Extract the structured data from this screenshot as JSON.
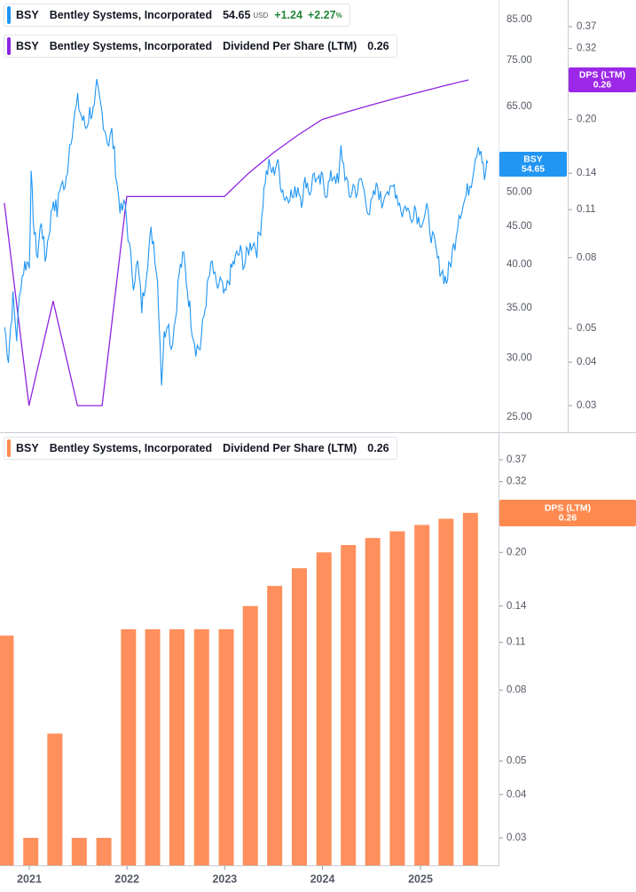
{
  "legends": {
    "price": {
      "ticker": "BSY",
      "company": "Bentley Systems, Incorporated",
      "price": "54.65",
      "currency": "USD",
      "change": "+1.24",
      "change_pct": "+2.27",
      "pct_symbol": "%",
      "color": "#2196f3"
    },
    "dps_line": {
      "ticker": "BSY",
      "company": "Bentley Systems, Incorporated",
      "metric": "Dividend Per Share (LTM)",
      "value": "0.26",
      "color": "#8e24e0"
    },
    "dps_bars": {
      "ticker": "BSY",
      "company": "Bentley Systems, Incorporated",
      "metric": "Dividend Per Share (LTM)",
      "value": "0.26",
      "color": "#ff8a50"
    }
  },
  "tags": {
    "price": {
      "label": "BSY",
      "value": "54.65",
      "color": "#2196f3"
    },
    "dps_top": {
      "label": "DPS (LTM)",
      "value": "0.26",
      "color": "#9c27e8"
    },
    "dps_bottom": {
      "label": "DPS (LTM)",
      "value": "0.26",
      "color": "#ff8a50"
    }
  },
  "chart_data": [
    {
      "type": "line",
      "scale": "log",
      "title": "",
      "xlabel": "",
      "ylabel": "",
      "x_tick_labels": [
        "2021",
        "2022",
        "2023",
        "2024",
        "2025"
      ],
      "y_tick_labels": [
        "85.00",
        "75.00",
        "65.00",
        "50.00",
        "45.00",
        "40.00",
        "35.00",
        "30.00",
        "25.00"
      ],
      "ylim": [
        24,
        95
      ],
      "series": [
        {
          "name": "BSY",
          "color": "#2196f3",
          "points": [
            [
              "2020-10-01",
              33.0
            ],
            [
              "2020-10-15",
              30.0
            ],
            [
              "2020-11-01",
              36.0
            ],
            [
              "2020-11-15",
              32.0
            ],
            [
              "2020-12-01",
              38.0
            ],
            [
              "2020-12-15",
              40.0
            ],
            [
              "2021-01-01",
              40.3
            ],
            [
              "2021-01-08",
              52.0
            ],
            [
              "2021-01-20",
              44.0
            ],
            [
              "2021-02-01",
              41.0
            ],
            [
              "2021-02-15",
              46.0
            ],
            [
              "2021-03-01",
              40.5
            ],
            [
              "2021-03-15",
              44.0
            ],
            [
              "2021-04-01",
              49.0
            ],
            [
              "2021-04-15",
              47.0
            ],
            [
              "2021-05-01",
              52.0
            ],
            [
              "2021-05-15",
              50.0
            ],
            [
              "2021-06-01",
              58.0
            ],
            [
              "2021-06-15",
              62.0
            ],
            [
              "2021-07-01",
              66.0
            ],
            [
              "2021-07-15",
              63.0
            ],
            [
              "2021-08-01",
              61.0
            ],
            [
              "2021-08-15",
              64.0
            ],
            [
              "2021-09-01",
              64.0
            ],
            [
              "2021-09-10",
              69.0
            ],
            [
              "2021-09-25",
              65.0
            ],
            [
              "2021-10-10",
              61.0
            ],
            [
              "2021-10-25",
              58.0
            ],
            [
              "2021-11-05",
              60.0
            ],
            [
              "2021-11-15",
              56.0
            ],
            [
              "2021-11-28",
              50.0
            ],
            [
              "2021-12-10",
              47.0
            ],
            [
              "2021-12-25",
              48.0
            ],
            [
              "2022-01-10",
              42.0
            ],
            [
              "2022-01-25",
              38.0
            ],
            [
              "2022-02-10",
              40.0
            ],
            [
              "2022-02-25",
              35.0
            ],
            [
              "2022-03-10",
              38.0
            ],
            [
              "2022-03-20",
              41.0
            ],
            [
              "2022-04-01",
              44.0
            ],
            [
              "2022-04-10",
              43.0
            ],
            [
              "2022-04-25",
              38.0
            ],
            [
              "2022-05-10",
              28.0
            ],
            [
              "2022-05-20",
              32.0
            ],
            [
              "2022-06-01",
              34.0
            ],
            [
              "2022-06-15",
              31.0
            ],
            [
              "2022-07-01",
              34.0
            ],
            [
              "2022-07-15",
              39.0
            ],
            [
              "2022-08-01",
              41.0
            ],
            [
              "2022-08-15",
              37.0
            ],
            [
              "2022-09-01",
              33.0
            ],
            [
              "2022-09-15",
              31.0
            ],
            [
              "2022-10-01",
              31.0
            ],
            [
              "2022-10-15",
              34.0
            ],
            [
              "2022-11-01",
              38.0
            ],
            [
              "2022-11-15",
              40.0
            ],
            [
              "2022-12-01",
              37.0
            ],
            [
              "2022-12-15",
              38.0
            ],
            [
              "2023-01-01",
              36.0
            ],
            [
              "2023-01-15",
              38.0
            ],
            [
              "2023-02-01",
              40.0
            ],
            [
              "2023-02-15",
              41.0
            ],
            [
              "2023-03-01",
              41.5
            ],
            [
              "2023-03-15",
              40.0
            ],
            [
              "2023-04-01",
              42.0
            ],
            [
              "2023-04-15",
              43.0
            ],
            [
              "2023-05-01",
              42.0
            ],
            [
              "2023-05-15",
              45.0
            ],
            [
              "2023-06-01",
              52.0
            ],
            [
              "2023-06-15",
              54.0
            ],
            [
              "2023-07-01",
              53.0
            ],
            [
              "2023-07-15",
              55.0
            ],
            [
              "2023-08-01",
              51.0
            ],
            [
              "2023-08-15",
              49.0
            ],
            [
              "2023-09-01",
              50.0
            ],
            [
              "2023-09-15",
              49.0
            ],
            [
              "2023-10-01",
              51.0
            ],
            [
              "2023-10-15",
              49.0
            ],
            [
              "2023-11-01",
              52.0
            ],
            [
              "2023-11-15",
              50.0
            ],
            [
              "2023-12-01",
              53.0
            ],
            [
              "2023-12-15",
              51.0
            ],
            [
              "2024-01-01",
              52.0
            ],
            [
              "2024-01-15",
              50.0
            ],
            [
              "2024-02-01",
              52.0
            ],
            [
              "2024-02-15",
              53.0
            ],
            [
              "2024-03-01",
              51.0
            ],
            [
              "2024-03-10",
              57.0
            ],
            [
              "2024-03-25",
              53.0
            ],
            [
              "2024-04-10",
              49.0
            ],
            [
              "2024-04-25",
              51.0
            ],
            [
              "2024-05-10",
              50.0
            ],
            [
              "2024-05-25",
              52.0
            ],
            [
              "2024-06-10",
              49.0
            ],
            [
              "2024-06-25",
              47.0
            ],
            [
              "2024-07-10",
              49.0
            ],
            [
              "2024-07-25",
              51.0
            ],
            [
              "2024-08-10",
              48.0
            ],
            [
              "2024-08-25",
              51.0
            ],
            [
              "2024-09-10",
              49.5
            ],
            [
              "2024-09-25",
              51.0
            ],
            [
              "2024-10-10",
              49.0
            ],
            [
              "2024-10-25",
              47.0
            ],
            [
              "2024-11-10",
              48.0
            ],
            [
              "2024-11-25",
              46.0
            ],
            [
              "2024-12-10",
              48.0
            ],
            [
              "2024-12-25",
              46.0
            ],
            [
              "2025-01-10",
              46.0
            ],
            [
              "2025-01-25",
              47.0
            ],
            [
              "2025-02-10",
              44.0
            ],
            [
              "2025-02-25",
              42.0
            ],
            [
              "2025-03-10",
              40.0
            ],
            [
              "2025-03-25",
              39.0
            ],
            [
              "2025-04-08",
              38.0
            ],
            [
              "2025-04-25",
              40.5
            ],
            [
              "2025-05-10",
              43.0
            ],
            [
              "2025-05-25",
              47.0
            ],
            [
              "2025-06-10",
              48.0
            ],
            [
              "2025-06-25",
              50.0
            ],
            [
              "2025-07-10",
              52.0
            ],
            [
              "2025-07-25",
              56.0
            ],
            [
              "2025-08-05",
              58.0
            ],
            [
              "2025-08-15",
              57.0
            ],
            [
              "2025-08-28",
              52.0
            ],
            [
              "2025-09-10",
              54.65
            ]
          ]
        }
      ]
    },
    {
      "type": "line",
      "scale": "log",
      "title": "",
      "xlabel": "",
      "ylabel": "",
      "y_tick_labels": [
        "0.37",
        "0.32",
        "0.20",
        "0.14",
        "0.11",
        "0.08",
        "0.05",
        "0.04",
        "0.03"
      ],
      "ylim": [
        0.026,
        0.42
      ],
      "series": [
        {
          "name": "DPS (LTM)",
          "color": "#8e24e0",
          "points": [
            [
              "2020-09-30",
              0.115
            ],
            [
              "2020-12-31",
              0.03
            ],
            [
              "2021-03-31",
              0.06
            ],
            [
              "2021-06-30",
              0.03
            ],
            [
              "2021-09-30",
              0.03
            ],
            [
              "2021-12-31",
              0.12
            ],
            [
              "2022-03-31",
              0.12
            ],
            [
              "2022-06-30",
              0.12
            ],
            [
              "2022-09-30",
              0.12
            ],
            [
              "2022-12-31",
              0.12
            ],
            [
              "2023-03-31",
              0.14
            ],
            [
              "2023-06-30",
              0.16
            ],
            [
              "2023-09-30",
              0.18
            ],
            [
              "2023-12-31",
              0.2
            ],
            [
              "2024-03-31",
              0.21
            ],
            [
              "2024-06-30",
              0.22
            ],
            [
              "2024-09-30",
              0.23
            ],
            [
              "2024-12-31",
              0.24
            ],
            [
              "2025-03-31",
              0.25
            ],
            [
              "2025-06-30",
              0.26
            ]
          ]
        }
      ]
    },
    {
      "type": "bar",
      "scale": "log",
      "title": "",
      "xlabel": "",
      "ylabel": "",
      "x_tick_labels": [
        "2021",
        "2022",
        "2023",
        "2024",
        "2025"
      ],
      "y_tick_labels": [
        "0.37",
        "0.32",
        "0.26",
        "0.20",
        "0.14",
        "0.11",
        "0.08",
        "0.05",
        "0.04",
        "0.03"
      ],
      "ylim": [
        0.026,
        0.42
      ],
      "categories": [
        "2020-09-30",
        "2020-12-31",
        "2021-03-31",
        "2021-06-30",
        "2021-09-30",
        "2021-12-31",
        "2022-03-31",
        "2022-06-30",
        "2022-09-30",
        "2022-12-31",
        "2023-03-31",
        "2023-06-30",
        "2023-09-30",
        "2023-12-31",
        "2024-03-31",
        "2024-06-30",
        "2024-09-30",
        "2024-12-31",
        "2025-03-31",
        "2025-06-30"
      ],
      "series": [
        {
          "name": "Dividend Per Share (LTM)",
          "color": "#ff8f5c",
          "values": [
            0.115,
            0.03,
            0.06,
            0.03,
            0.03,
            0.12,
            0.12,
            0.12,
            0.12,
            0.12,
            0.14,
            0.16,
            0.18,
            0.2,
            0.21,
            0.22,
            0.23,
            0.24,
            0.25,
            0.26
          ]
        }
      ]
    }
  ]
}
